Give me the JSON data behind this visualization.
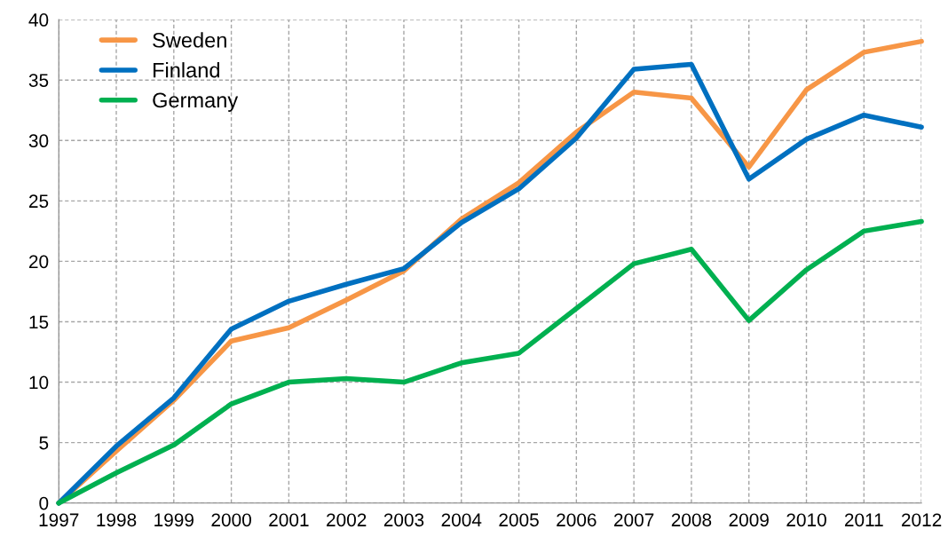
{
  "chart_data": {
    "type": "line",
    "x": [
      1997,
      1998,
      1999,
      2000,
      2001,
      2002,
      2003,
      2004,
      2005,
      2006,
      2007,
      2008,
      2009,
      2010,
      2011,
      2012
    ],
    "series": [
      {
        "name": "Sweden",
        "color": "#f79646",
        "values": [
          0,
          4.3,
          8.5,
          13.4,
          14.5,
          16.8,
          19.2,
          23.5,
          26.5,
          30.7,
          34,
          33.5,
          27.8,
          34.2,
          37.3,
          38.2
        ]
      },
      {
        "name": "Finland",
        "color": "#0070c0",
        "values": [
          0,
          4.7,
          8.7,
          14.4,
          16.7,
          18.1,
          19.4,
          23.2,
          26,
          30.2,
          35.9,
          36.3,
          26.8,
          30.1,
          32.1,
          31.1
        ]
      },
      {
        "name": "Germany",
        "color": "#00b050",
        "values": [
          0,
          2.5,
          4.8,
          8.2,
          10,
          10.3,
          10,
          11.6,
          12.4,
          16.1,
          19.8,
          21,
          15.1,
          19.3,
          22.5,
          23.3
        ]
      }
    ],
    "xlim": [
      1997,
      2012
    ],
    "xticks": [
      1997,
      1998,
      1999,
      2000,
      2001,
      2002,
      2003,
      2004,
      2005,
      2006,
      2007,
      2008,
      2009,
      2010,
      2011,
      2012
    ],
    "ylim": [
      0,
      40
    ],
    "yticks": [
      0,
      5,
      10,
      15,
      20,
      25,
      30,
      35,
      40
    ],
    "grid": true,
    "legend": "top left",
    "marker": "none",
    "line_style": "solid"
  }
}
